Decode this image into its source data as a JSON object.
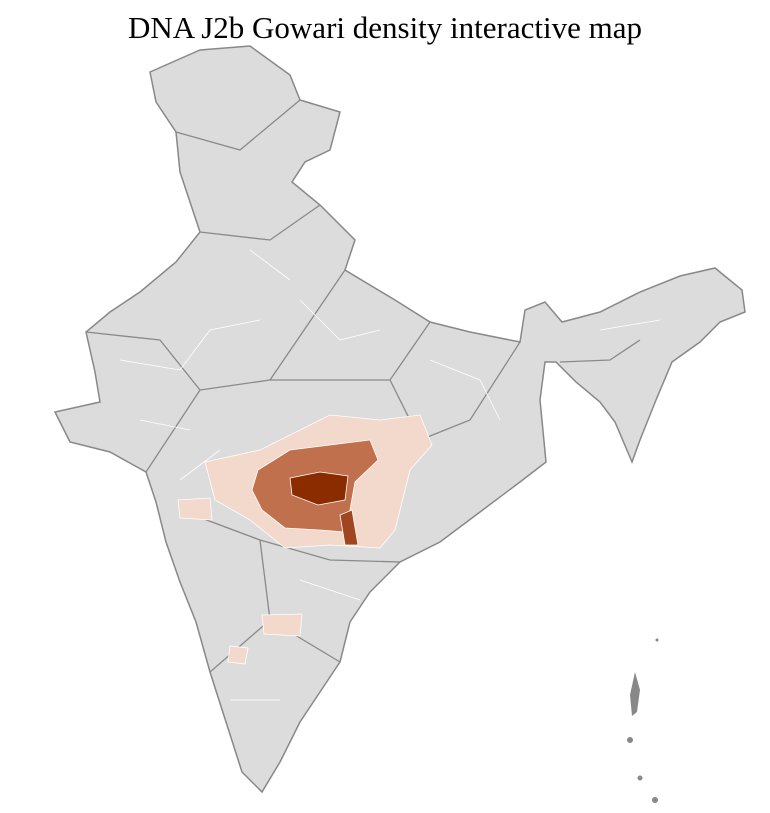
{
  "title": "DNA J2b Gowari density interactive map"
}
